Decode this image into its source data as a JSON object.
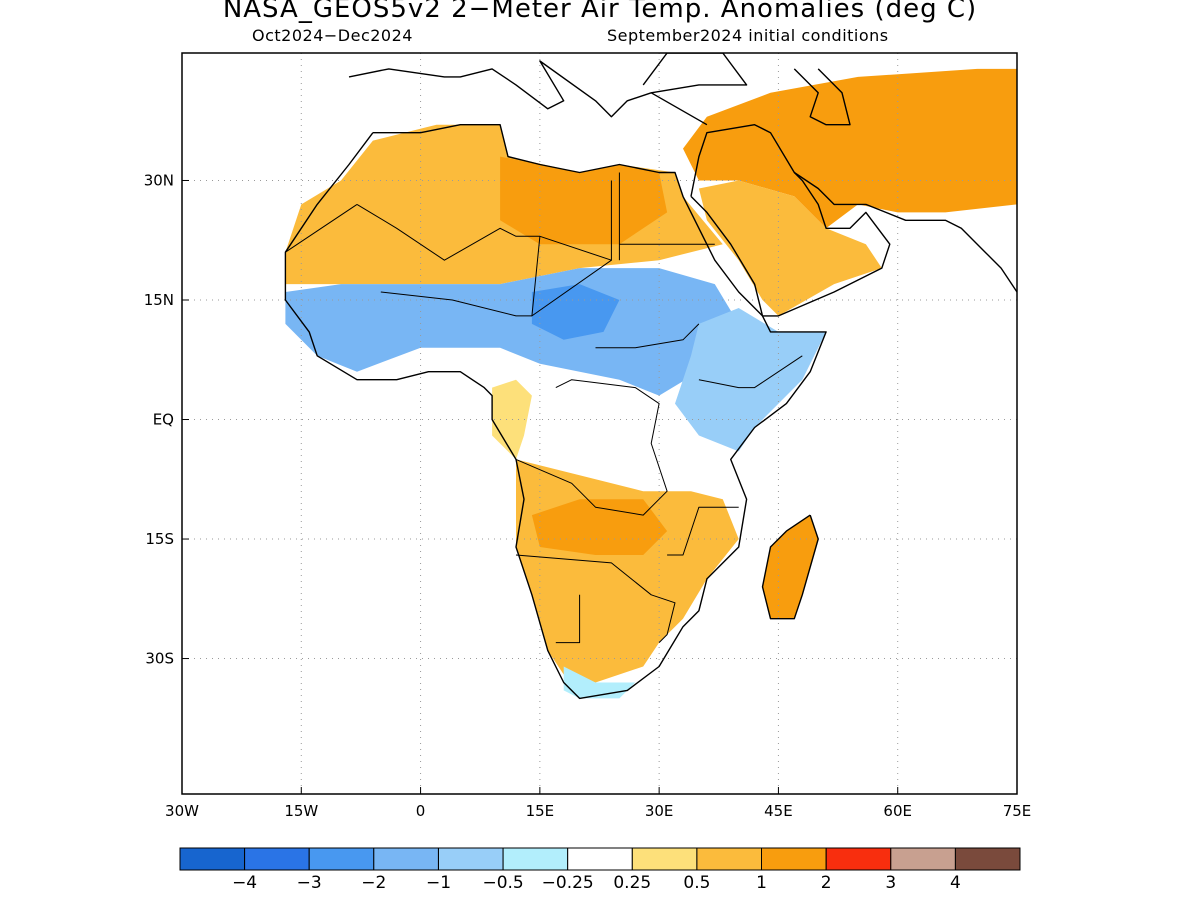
{
  "title": "NASA_GEOS5v2 2−Meter Air Temp. Anomalies (deg C)",
  "subtitle_left": "Oct2024−Dec2024",
  "subtitle_right": "September2024 initial conditions",
  "map": {
    "lon_range": [
      -30,
      75
    ],
    "lat_range": [
      -47,
      46
    ],
    "x_ticks": [
      {
        "lon": -30,
        "label": "30W"
      },
      {
        "lon": -15,
        "label": "15W"
      },
      {
        "lon": 0,
        "label": "0"
      },
      {
        "lon": 15,
        "label": "15E"
      },
      {
        "lon": 30,
        "label": "30E"
      },
      {
        "lon": 45,
        "label": "45E"
      },
      {
        "lon": 60,
        "label": "60E"
      },
      {
        "lon": 75,
        "label": "75E"
      }
    ],
    "y_ticks": [
      {
        "lat": 30,
        "label": "30N"
      },
      {
        "lat": 15,
        "label": "15N"
      },
      {
        "lat": 0,
        "label": "EQ"
      },
      {
        "lat": -15,
        "label": "15S"
      },
      {
        "lat": -30,
        "label": "30S"
      }
    ],
    "grid": "dotted"
  },
  "colorbar": {
    "colors": [
      "#1765cf",
      "#2a74e6",
      "#4898f0",
      "#78b6f4",
      "#98cef8",
      "#b2eefc",
      "#ffffff",
      "#fde07a",
      "#fbbb3c",
      "#f89d0e",
      "#f82e0e",
      "#c8a090",
      "#7a4a3c"
    ],
    "labels": [
      "−4",
      "−3",
      "−2",
      "−1",
      "−0.5",
      "−0.25",
      "0.25",
      "0.5",
      "1",
      "2",
      "3",
      "4"
    ]
  },
  "regions": [
    {
      "name": "north-africa-warm",
      "color": "#fbbb3c",
      "points": [
        [
          -17,
          21
        ],
        [
          -15,
          27
        ],
        [
          -10,
          30
        ],
        [
          -6,
          35
        ],
        [
          2,
          37
        ],
        [
          10,
          37
        ],
        [
          11,
          33
        ],
        [
          20,
          31
        ],
        [
          25,
          32
        ],
        [
          32,
          31
        ],
        [
          33,
          28
        ],
        [
          38,
          22
        ],
        [
          30,
          20
        ],
        [
          20,
          19
        ],
        [
          10,
          17
        ],
        [
          0,
          17
        ],
        [
          -10,
          17
        ],
        [
          -17,
          17
        ]
      ]
    },
    {
      "name": "sahara-strong-warm",
      "color": "#f89d0e",
      "points": [
        [
          10,
          33
        ],
        [
          20,
          31
        ],
        [
          25,
          32
        ],
        [
          30,
          31
        ],
        [
          31,
          26
        ],
        [
          25,
          22
        ],
        [
          15,
          22
        ],
        [
          10,
          25
        ]
      ]
    },
    {
      "name": "middle-east-warm",
      "color": "#f89d0e",
      "points": [
        [
          33,
          34
        ],
        [
          36,
          38
        ],
        [
          44,
          41
        ],
        [
          55,
          43
        ],
        [
          70,
          44
        ],
        [
          75,
          44
        ],
        [
          75,
          27
        ],
        [
          66,
          26
        ],
        [
          60,
          26
        ],
        [
          55,
          27
        ],
        [
          51,
          24
        ],
        [
          47,
          28
        ],
        [
          40,
          30
        ],
        [
          35,
          30
        ]
      ]
    },
    {
      "name": "arabia-warm",
      "color": "#fbbb3c",
      "points": [
        [
          35,
          29
        ],
        [
          40,
          30
        ],
        [
          47,
          28
        ],
        [
          51,
          24
        ],
        [
          56,
          22
        ],
        [
          58,
          19
        ],
        [
          52,
          17
        ],
        [
          45,
          13
        ],
        [
          43,
          15
        ],
        [
          40,
          20
        ],
        [
          36,
          25
        ]
      ]
    },
    {
      "name": "sahel-cool",
      "color": "#78b6f4",
      "points": [
        [
          -17,
          16
        ],
        [
          -10,
          17
        ],
        [
          0,
          17
        ],
        [
          10,
          17
        ],
        [
          20,
          19
        ],
        [
          30,
          19
        ],
        [
          37,
          17
        ],
        [
          40,
          12
        ],
        [
          35,
          6
        ],
        [
          30,
          3
        ],
        [
          25,
          5
        ],
        [
          15,
          7
        ],
        [
          10,
          9
        ],
        [
          5,
          9
        ],
        [
          0,
          9
        ],
        [
          -8,
          6
        ],
        [
          -13,
          8
        ],
        [
          -17,
          12
        ]
      ]
    },
    {
      "name": "sahel-strong-cool",
      "color": "#4898f0",
      "points": [
        [
          14,
          16
        ],
        [
          20,
          17
        ],
        [
          25,
          15
        ],
        [
          23,
          11
        ],
        [
          18,
          10
        ],
        [
          14,
          12
        ]
      ]
    },
    {
      "name": "horn-cool",
      "color": "#98cef8",
      "points": [
        [
          35,
          12
        ],
        [
          40,
          14
        ],
        [
          45,
          11
        ],
        [
          51,
          11
        ],
        [
          48,
          5
        ],
        [
          42,
          -1
        ],
        [
          40,
          -4
        ],
        [
          35,
          -2
        ],
        [
          32,
          2
        ],
        [
          34,
          8
        ]
      ]
    },
    {
      "name": "central-neutral",
      "color": "#ffffff",
      "points": [
        [
          10,
          4
        ],
        [
          15,
          6
        ],
        [
          25,
          4
        ],
        [
          30,
          3
        ],
        [
          33,
          -2
        ],
        [
          36,
          -5
        ],
        [
          39,
          -6
        ],
        [
          34,
          -9
        ],
        [
          25,
          -8
        ],
        [
          15,
          -7
        ],
        [
          12,
          -4
        ],
        [
          9,
          0
        ]
      ]
    },
    {
      "name": "west-central-warm",
      "color": "#fde07a",
      "points": [
        [
          9,
          4
        ],
        [
          12,
          5
        ],
        [
          14,
          3
        ],
        [
          13,
          -2
        ],
        [
          12,
          -5
        ],
        [
          9,
          -2
        ]
      ]
    },
    {
      "name": "southern-warm",
      "color": "#fbbb3c",
      "points": [
        [
          12,
          -5
        ],
        [
          20,
          -7
        ],
        [
          28,
          -9
        ],
        [
          34,
          -9
        ],
        [
          38,
          -10
        ],
        [
          40,
          -15
        ],
        [
          36,
          -20
        ],
        [
          33,
          -25
        ],
        [
          30,
          -28
        ],
        [
          28,
          -31
        ],
        [
          22,
          -33
        ],
        [
          18,
          -32
        ],
        [
          16,
          -29
        ],
        [
          14,
          -22
        ],
        [
          12,
          -16
        ],
        [
          12,
          -10
        ]
      ]
    },
    {
      "name": "angola-zambia-strong-warm",
      "color": "#f89d0e",
      "points": [
        [
          14,
          -12
        ],
        [
          20,
          -10
        ],
        [
          28,
          -10
        ],
        [
          31,
          -14
        ],
        [
          28,
          -17
        ],
        [
          22,
          -17
        ],
        [
          15,
          -16
        ]
      ]
    },
    {
      "name": "south-coast-cool",
      "color": "#b2eefc",
      "points": [
        [
          18,
          -31
        ],
        [
          22,
          -33
        ],
        [
          27,
          -33
        ],
        [
          25,
          -35
        ],
        [
          20,
          -35
        ],
        [
          18,
          -34
        ]
      ]
    },
    {
      "name": "madagascar-warm",
      "color": "#f89d0e",
      "points": [
        [
          49,
          -12
        ],
        [
          50,
          -15
        ],
        [
          48,
          -22
        ],
        [
          47,
          -25
        ],
        [
          44,
          -25
        ],
        [
          43,
          -21
        ],
        [
          44,
          -16
        ],
        [
          46,
          -14
        ]
      ]
    }
  ],
  "coastlines": [
    {
      "name": "africa-coastline",
      "points": [
        [
          -6,
          36
        ],
        [
          -9,
          32
        ],
        [
          -13,
          27
        ],
        [
          -17,
          21
        ],
        [
          -17,
          15
        ],
        [
          -14,
          11
        ],
        [
          -13,
          8
        ],
        [
          -8,
          5
        ],
        [
          -3,
          5
        ],
        [
          1,
          6
        ],
        [
          5,
          6
        ],
        [
          8,
          4
        ],
        [
          9,
          3
        ],
        [
          9,
          0
        ],
        [
          12,
          -5
        ],
        [
          13,
          -10
        ],
        [
          12,
          -16
        ],
        [
          14,
          -22
        ],
        [
          16,
          -29
        ],
        [
          18,
          -33
        ],
        [
          20,
          -35
        ],
        [
          26,
          -34
        ],
        [
          30,
          -31
        ],
        [
          33,
          -26
        ],
        [
          35,
          -24
        ],
        [
          36,
          -20
        ],
        [
          40,
          -16
        ],
        [
          41,
          -10
        ],
        [
          39,
          -5
        ],
        [
          42,
          -1
        ],
        [
          46,
          2
        ],
        [
          49,
          6
        ],
        [
          51,
          11
        ],
        [
          44,
          11
        ],
        [
          43,
          13
        ],
        [
          40,
          16
        ],
        [
          37,
          20
        ],
        [
          35,
          24
        ],
        [
          33,
          28
        ],
        [
          32,
          31
        ],
        [
          30,
          31
        ],
        [
          25,
          32
        ],
        [
          20,
          31
        ],
        [
          15,
          32
        ],
        [
          11,
          33
        ],
        [
          10,
          37
        ],
        [
          5,
          37
        ],
        [
          0,
          36
        ],
        [
          -6,
          36
        ]
      ]
    },
    {
      "name": "arabia-coastline",
      "points": [
        [
          34,
          28
        ],
        [
          36,
          26
        ],
        [
          39,
          22
        ],
        [
          42,
          17
        ],
        [
          43,
          13
        ],
        [
          45,
          13
        ],
        [
          52,
          16
        ],
        [
          58,
          19
        ],
        [
          59,
          22
        ],
        [
          56,
          26
        ],
        [
          54,
          24
        ],
        [
          51,
          24
        ],
        [
          50,
          27
        ],
        [
          48,
          30
        ],
        [
          47,
          31
        ],
        [
          44,
          36
        ],
        [
          42,
          37
        ],
        [
          36,
          36
        ],
        [
          35,
          33
        ],
        [
          34,
          28
        ]
      ]
    },
    {
      "name": "iran-pakistan-coastline",
      "points": [
        [
          47,
          31
        ],
        [
          50,
          29
        ],
        [
          52,
          27
        ],
        [
          56,
          27
        ],
        [
          61,
          25
        ],
        [
          66,
          25
        ],
        [
          68,
          24
        ],
        [
          71,
          21
        ],
        [
          73,
          19
        ],
        [
          75,
          16
        ]
      ]
    },
    {
      "name": "madagascar-coastline",
      "points": [
        [
          49,
          -12
        ],
        [
          50,
          -15
        ],
        [
          48,
          -22
        ],
        [
          47,
          -25
        ],
        [
          44,
          -25
        ],
        [
          43,
          -21
        ],
        [
          44,
          -16
        ],
        [
          46,
          -14
        ],
        [
          49,
          -12
        ]
      ]
    },
    {
      "name": "mediterranean-europe-coastline",
      "points": [
        [
          -9,
          43
        ],
        [
          -4,
          44
        ],
        [
          3,
          43
        ],
        [
          5,
          43
        ],
        [
          9,
          44
        ],
        [
          12,
          42
        ],
        [
          16,
          39
        ],
        [
          18,
          40
        ],
        [
          15,
          45
        ],
        [
          22,
          40
        ],
        [
          24,
          38
        ],
        [
          26,
          40
        ],
        [
          29,
          41
        ],
        [
          36,
          37
        ]
      ]
    },
    {
      "name": "black-sea-coastline",
      "points": [
        [
          28,
          42
        ],
        [
          31,
          46
        ],
        [
          38,
          46
        ],
        [
          41,
          42
        ],
        [
          35,
          42
        ],
        [
          29,
          41
        ]
      ]
    },
    {
      "name": "caspian-coastline",
      "points": [
        [
          47,
          44
        ],
        [
          50,
          41
        ],
        [
          49,
          38
        ],
        [
          51,
          37
        ],
        [
          54,
          37
        ],
        [
          53,
          41
        ],
        [
          50,
          44
        ]
      ]
    }
  ],
  "borders": [
    {
      "name": "sahara-border-1",
      "points": [
        [
          -8,
          27
        ],
        [
          -3,
          24
        ],
        [
          3,
          20
        ],
        [
          10,
          24
        ],
        [
          12,
          23
        ],
        [
          15,
          23
        ],
        [
          24,
          20
        ],
        [
          24,
          30
        ]
      ]
    },
    {
      "name": "sahara-border-2",
      "points": [
        [
          -17,
          21
        ],
        [
          -8,
          27
        ]
      ]
    },
    {
      "name": "egypt-sudan-border",
      "points": [
        [
          25,
          22
        ],
        [
          37,
          22
        ]
      ]
    },
    {
      "name": "libya-egypt-border",
      "points": [
        [
          25,
          31
        ],
        [
          25,
          20
        ]
      ]
    },
    {
      "name": "chad-niger-border",
      "points": [
        [
          15,
          23
        ],
        [
          14,
          13
        ],
        [
          24,
          20
        ]
      ]
    },
    {
      "name": "mali-niger-border",
      "points": [
        [
          -5,
          16
        ],
        [
          4,
          15
        ],
        [
          12,
          13
        ],
        [
          14,
          13
        ]
      ]
    },
    {
      "name": "sudan-south-border",
      "points": [
        [
          22,
          9
        ],
        [
          27,
          9
        ],
        [
          33,
          10
        ],
        [
          35,
          12
        ]
      ]
    },
    {
      "name": "ethiopia-border",
      "points": [
        [
          35,
          5
        ],
        [
          40,
          4
        ],
        [
          42,
          4
        ],
        [
          48,
          8
        ]
      ]
    },
    {
      "name": "drc-border",
      "points": [
        [
          12,
          -5
        ],
        [
          19,
          -8
        ],
        [
          22,
          -11
        ],
        [
          28,
          -12
        ],
        [
          31,
          -9
        ],
        [
          29,
          -3
        ],
        [
          30,
          2
        ],
        [
          27,
          4
        ],
        [
          19,
          5
        ],
        [
          17,
          4
        ]
      ]
    },
    {
      "name": "southern-border",
      "points": [
        [
          12,
          -17
        ],
        [
          24,
          -18
        ],
        [
          29,
          -22
        ],
        [
          32,
          -23
        ],
        [
          31,
          -27
        ],
        [
          30,
          -28
        ]
      ]
    },
    {
      "name": "namibia-border",
      "points": [
        [
          20,
          -22
        ],
        [
          20,
          -28
        ],
        [
          17,
          -28
        ]
      ]
    },
    {
      "name": "mozambique-border",
      "points": [
        [
          31,
          -17
        ],
        [
          33,
          -17
        ],
        [
          35,
          -11
        ],
        [
          40,
          -11
        ]
      ]
    }
  ]
}
